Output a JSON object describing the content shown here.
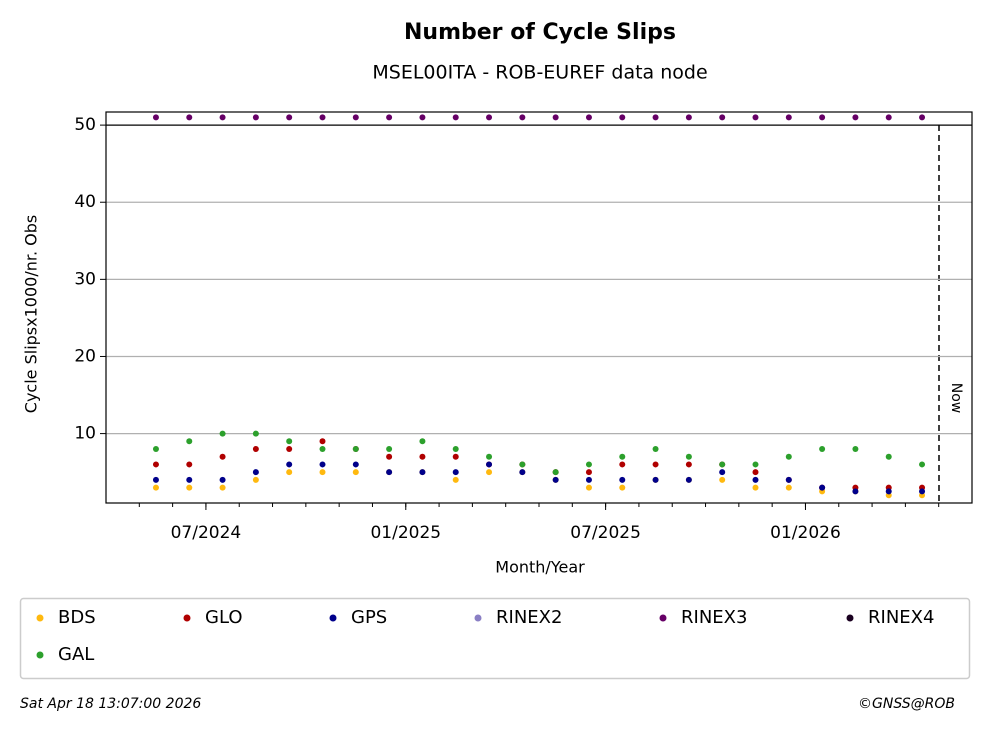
{
  "chart_data": {
    "type": "scatter",
    "title": "Number of Cycle Slips",
    "subtitle": "MSEL00ITA - ROB-EUREF data node",
    "x_label": "Month/Year",
    "y_label": "Cycle Slipsx1000/nr. Obs",
    "annotation": "Now",
    "footer_left": "Sat Apr 18 13:07:00 2026",
    "footer_right": "©GNSS@ROB",
    "grid": true,
    "xlim": [
      "04/2024",
      "06/2026"
    ],
    "xticks": [
      "07/2024",
      "01/2025",
      "07/2025",
      "01/2026"
    ],
    "ylim": [
      1,
      51.7
    ],
    "yticks": [
      10,
      20,
      30,
      40,
      50
    ],
    "x": [
      "05/2024",
      "06/2024",
      "07/2024",
      "08/2024",
      "09/2024",
      "10/2024",
      "11/2024",
      "12/2024",
      "01/2025",
      "02/2025",
      "03/2025",
      "04/2025",
      "05/2025",
      "06/2025",
      "07/2025",
      "08/2025",
      "09/2025",
      "10/2025",
      "11/2025",
      "12/2025",
      "01/2026",
      "02/2026",
      "03/2026",
      "04/2026"
    ],
    "series": [
      {
        "name": "BDS",
        "color": "#ffb90f",
        "values": [
          3,
          3,
          3,
          4,
          5,
          5,
          5,
          5,
          5,
          4,
          5,
          5,
          4,
          3,
          3,
          4,
          4,
          4,
          3,
          3,
          2.5,
          2.5,
          2,
          2
        ]
      },
      {
        "name": "GLO",
        "color": "#b00000",
        "values": [
          6,
          6,
          7,
          8,
          8,
          9,
          8,
          7,
          7,
          7,
          6,
          6,
          5,
          5,
          6,
          6,
          6,
          6,
          5,
          4,
          3,
          3,
          3,
          3
        ]
      },
      {
        "name": "GPS",
        "color": "#00008b",
        "values": [
          4,
          4,
          4,
          5,
          6,
          6,
          6,
          5,
          5,
          5,
          6,
          5,
          4,
          4,
          4,
          4,
          4,
          5,
          4,
          4,
          3,
          2.5,
          2.5,
          2.5
        ]
      },
      {
        "name": "RINEX2",
        "color": "#8a7fc4",
        "values": [
          null,
          null,
          null,
          null,
          null,
          null,
          null,
          null,
          null,
          null,
          null,
          null,
          null,
          null,
          null,
          null,
          null,
          null,
          null,
          null,
          null,
          null,
          null,
          null
        ]
      },
      {
        "name": "RINEX3",
        "color": "#660066",
        "values": [
          51,
          51,
          51,
          51,
          51,
          51,
          51,
          51,
          51,
          51,
          51,
          51,
          51,
          51,
          51,
          51,
          51,
          51,
          51,
          51,
          51,
          51,
          51,
          51
        ]
      },
      {
        "name": "RINEX4",
        "color": "#1a0020",
        "values": [
          null,
          null,
          null,
          null,
          null,
          null,
          null,
          null,
          null,
          null,
          null,
          null,
          null,
          null,
          null,
          null,
          null,
          null,
          null,
          null,
          null,
          null,
          null,
          null
        ]
      },
      {
        "name": "GAL",
        "color": "#2ca02c",
        "values": [
          8,
          9,
          10,
          10,
          9,
          8,
          8,
          8,
          9,
          8,
          7,
          6,
          5,
          6,
          7,
          8,
          7,
          6,
          6,
          7,
          8,
          8,
          7,
          6
        ]
      }
    ]
  }
}
